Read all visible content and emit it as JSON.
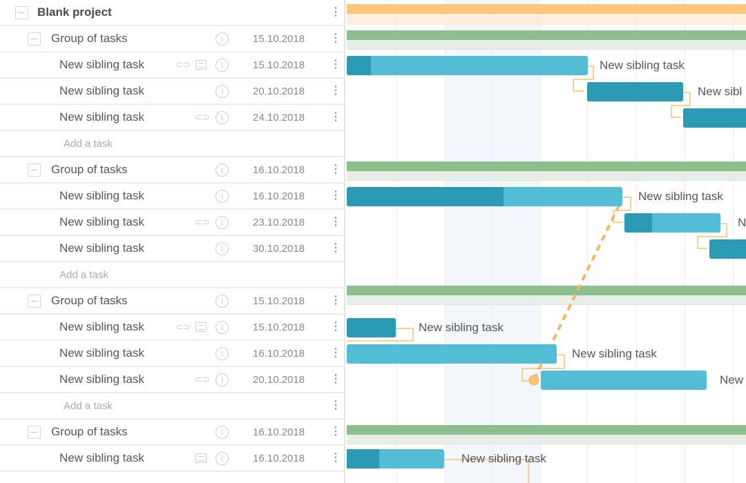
{
  "project": {
    "name": "Blank project"
  },
  "groups": [
    {
      "name": "Group of tasks",
      "date": "15.10.2018",
      "tasks": [
        {
          "name": "New sibling task",
          "date": "15.10.2018",
          "attachment": true,
          "comment": true,
          "progress": 0.1
        },
        {
          "name": "New sibling task",
          "date": "20.10.2018",
          "attachment": false,
          "comment": false,
          "progress": 1.0
        },
        {
          "name": "New sibling task",
          "date": "24.10.2018",
          "attachment": true,
          "comment": false,
          "progress": 1.0
        }
      ]
    },
    {
      "name": "Group of tasks",
      "date": "16.10.2018",
      "tasks": [
        {
          "name": "New sibling task",
          "date": "16.10.2018",
          "attachment": false,
          "comment": false,
          "progress": 0.57
        },
        {
          "name": "New sibling task",
          "date": "23.10.2018",
          "attachment": true,
          "comment": false,
          "progress": 0.29
        },
        {
          "name": "New sibling task",
          "date": "30.10.2018",
          "attachment": false,
          "comment": false,
          "progress": 1.0
        }
      ]
    },
    {
      "name": "Group of tasks",
      "date": "15.10.2018",
      "tasks": [
        {
          "name": "New sibling task",
          "date": "15.10.2018",
          "attachment": true,
          "comment": true,
          "progress": 1.0
        },
        {
          "name": "New sibling task",
          "date": "16.10.2018",
          "attachment": false,
          "comment": false,
          "progress": 0
        },
        {
          "name": "New sibling task",
          "date": "20.10.2018",
          "attachment": true,
          "comment": false,
          "progress": 0
        }
      ]
    },
    {
      "name": "Group of tasks",
      "date": "16.10.2018",
      "tasks": [
        {
          "name": "New sibling task",
          "date": "16.10.2018",
          "attachment": false,
          "comment": true,
          "progress": 0.34
        }
      ]
    }
  ],
  "add_task_label": "Add a task",
  "bar_labels": {
    "g0t0": "New sibling task",
    "g0t1": "New sibl",
    "g1t0": "New sibling task",
    "g1t1": "N",
    "g2t0": "New sibling task",
    "g2t1": "New sibling task",
    "g2t2": "New",
    "g3t0": "New sibling task"
  },
  "colors": {
    "project": "#fcc77c",
    "group": "#8dbf8e",
    "task": "#54bdd6",
    "task_progress": "#2a9ab5",
    "link": "#f3c46e"
  },
  "icons": {
    "collapse": "minus-square-icon",
    "info": "info-circle-icon",
    "attachment": "paperclip-icon",
    "comment": "comment-icon",
    "menu": "vertical-dots-icon"
  }
}
